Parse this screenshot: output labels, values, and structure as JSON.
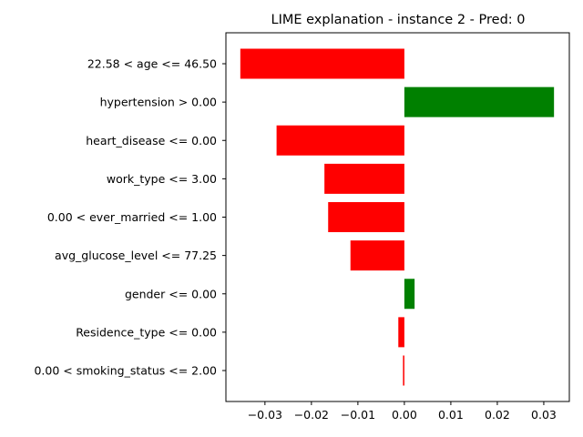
{
  "chart_data": {
    "type": "bar",
    "orientation": "horizontal",
    "title": "LIME explanation - instance 2 - Pred: 0",
    "xlabel": "",
    "ylabel": "",
    "xlim": [
      -0.0384,
      0.0355
    ],
    "grid": false,
    "legend": "none",
    "positive_color": "#008000",
    "negative_color": "#ff0000",
    "xticks": [
      {
        "value": -0.03,
        "label": "−0.03"
      },
      {
        "value": -0.02,
        "label": "−0.02"
      },
      {
        "value": -0.01,
        "label": "−0.01"
      },
      {
        "value": 0.0,
        "label": "0.00"
      },
      {
        "value": 0.01,
        "label": "0.01"
      },
      {
        "value": 0.02,
        "label": "0.02"
      },
      {
        "value": 0.03,
        "label": "0.03"
      }
    ],
    "categories": [
      "22.58 < age <= 46.50",
      "hypertension > 0.00",
      "heart_disease <= 0.00",
      "work_type <= 3.00",
      "0.00 < ever_married <= 1.00",
      "avg_glucose_level <= 77.25",
      "gender <= 0.00",
      "Residence_type <= 0.00",
      "0.00 < smoking_status <= 2.00"
    ],
    "values": [
      -0.0353,
      0.0322,
      -0.0275,
      -0.0172,
      -0.0164,
      -0.0116,
      0.0022,
      -0.0013,
      -0.0003
    ]
  }
}
